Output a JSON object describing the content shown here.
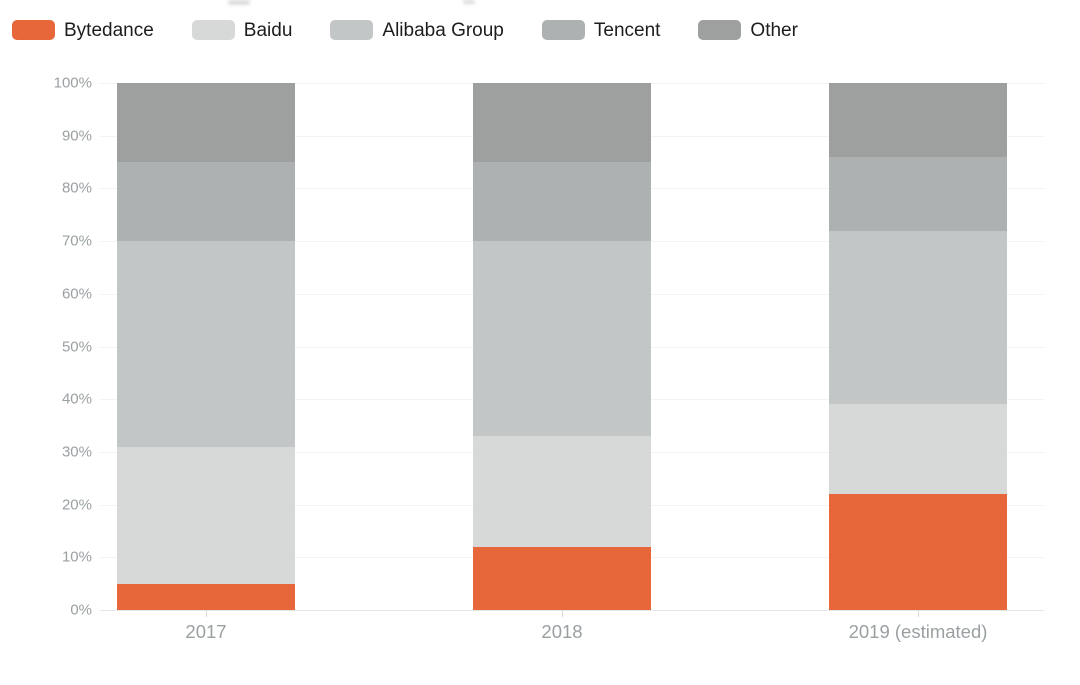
{
  "chart_data": {
    "type": "bar",
    "variant": "stacked-100-percent-column",
    "categories": [
      "2017",
      "2018",
      "2019 (estimated)"
    ],
    "series": [
      {
        "name": "Bytedance",
        "color": "#e8673a",
        "values": [
          5,
          12,
          22
        ]
      },
      {
        "name": "Baidu",
        "color": "#d7d9d8",
        "values": [
          26,
          21,
          17
        ]
      },
      {
        "name": "Alibaba Group",
        "color": "#c3c6c6",
        "values": [
          39,
          37,
          33
        ]
      },
      {
        "name": "Tencent",
        "color": "#aeb1b1",
        "values": [
          15,
          15,
          14
        ]
      },
      {
        "name": "Other",
        "color": "#9da09f",
        "values": [
          15,
          15,
          14
        ]
      }
    ],
    "y_axis": {
      "min": 0,
      "max": 100,
      "step": 10,
      "ticks": [
        "0%",
        "10%",
        "20%",
        "30%",
        "40%",
        "50%",
        "60%",
        "70%",
        "80%",
        "90%",
        "100%"
      ]
    },
    "x_axis": {
      "tick_labels": [
        "2017",
        "2018",
        "2019 (estimated)"
      ]
    },
    "legend": {
      "position": "top-left"
    },
    "grid": true,
    "ylim": [
      0,
      100
    ]
  }
}
